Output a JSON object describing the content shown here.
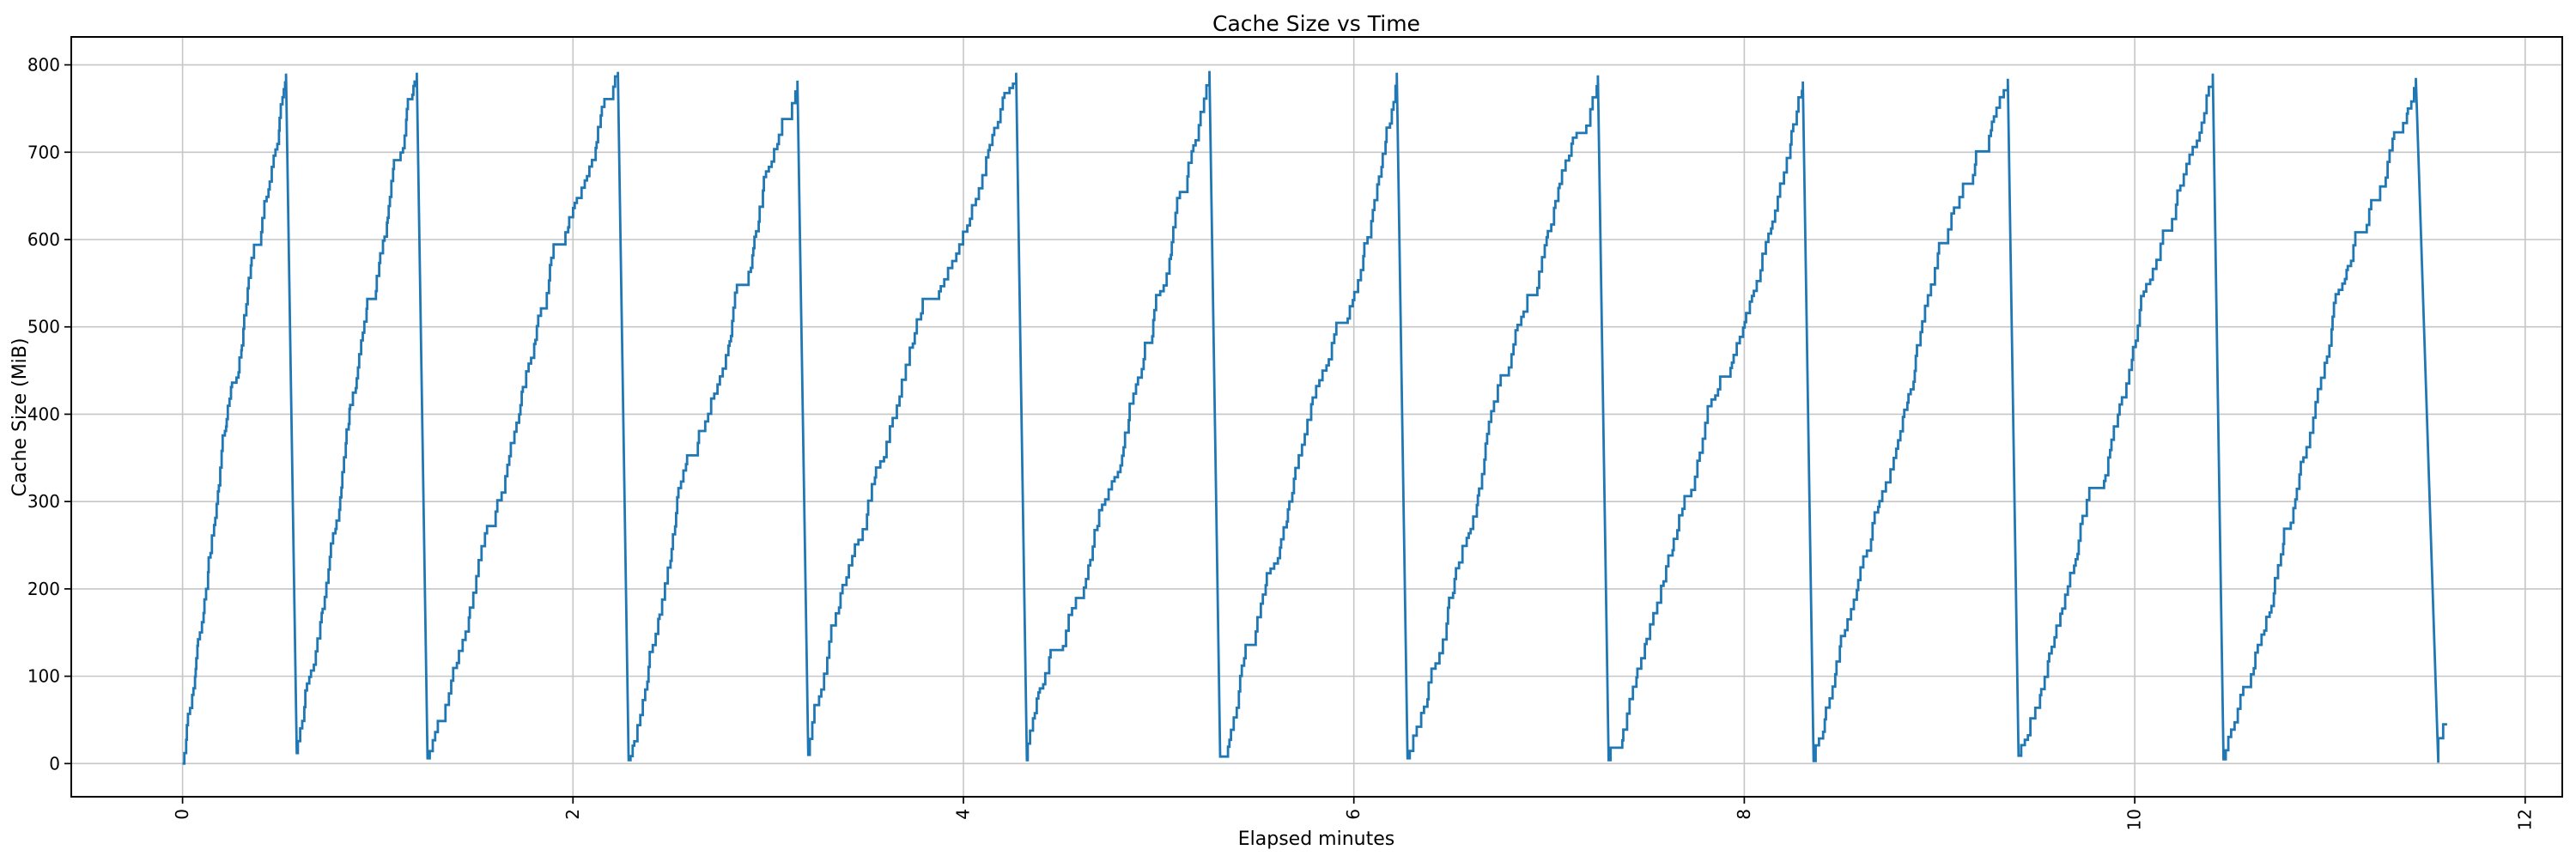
{
  "figure": {
    "background": "#ffffff",
    "title": "Cache Size vs Time",
    "xlabel": "Elapsed minutes",
    "ylabel": "Cache Size (MiB)"
  },
  "chart_data": {
    "type": "line",
    "title": "Cache Size vs Time",
    "xlabel": "Elapsed minutes",
    "ylabel": "Cache Size (MiB)",
    "x_ticks": [
      0,
      2,
      4,
      6,
      8,
      10,
      12
    ],
    "y_ticks": [
      0,
      100,
      200,
      300,
      400,
      500,
      600,
      700,
      800
    ],
    "xlim": [
      -0.57,
      12.19
    ],
    "ylim": [
      -38,
      832
    ],
    "grid": true,
    "legend": "none",
    "line_color": "#1f77b4",
    "grid_color": "#c6c6c6",
    "spine_color": "#000000",
    "x_tick_rotation_deg": 90,
    "series": [
      {
        "name": "cache_size_mib",
        "pattern": "sawtooth-staircase",
        "step_mib": 12,
        "drop_minutes": 0.055,
        "cycles": [
          {
            "start": 0.0,
            "start_value": 0,
            "peak_time": 0.53,
            "peak_value": 790
          },
          {
            "start": 0.585,
            "start_value": 12,
            "peak_time": 1.2,
            "peak_value": 791
          },
          {
            "start": 1.255,
            "start_value": 6,
            "peak_time": 2.23,
            "peak_value": 792
          },
          {
            "start": 2.285,
            "start_value": 4,
            "peak_time": 3.15,
            "peak_value": 782
          },
          {
            "start": 3.205,
            "start_value": 10,
            "peak_time": 4.27,
            "peak_value": 791
          },
          {
            "start": 4.325,
            "start_value": 4,
            "peak_time": 5.26,
            "peak_value": 793
          },
          {
            "start": 5.315,
            "start_value": 8,
            "peak_time": 6.22,
            "peak_value": 791
          },
          {
            "start": 6.275,
            "start_value": 6,
            "peak_time": 7.25,
            "peak_value": 788
          },
          {
            "start": 7.305,
            "start_value": 4,
            "peak_time": 8.3,
            "peak_value": 781
          },
          {
            "start": 8.355,
            "start_value": 3,
            "peak_time": 9.35,
            "peak_value": 784
          },
          {
            "start": 9.405,
            "start_value": 9,
            "peak_time": 10.4,
            "peak_value": 790
          },
          {
            "start": 10.455,
            "start_value": 5,
            "peak_time": 11.44,
            "peak_value": 785
          }
        ],
        "tail_points": [
          [
            11.555,
            1
          ],
          [
            11.555,
            29
          ],
          [
            11.58,
            29
          ],
          [
            11.58,
            45
          ],
          [
            11.6,
            45
          ]
        ]
      }
    ]
  }
}
